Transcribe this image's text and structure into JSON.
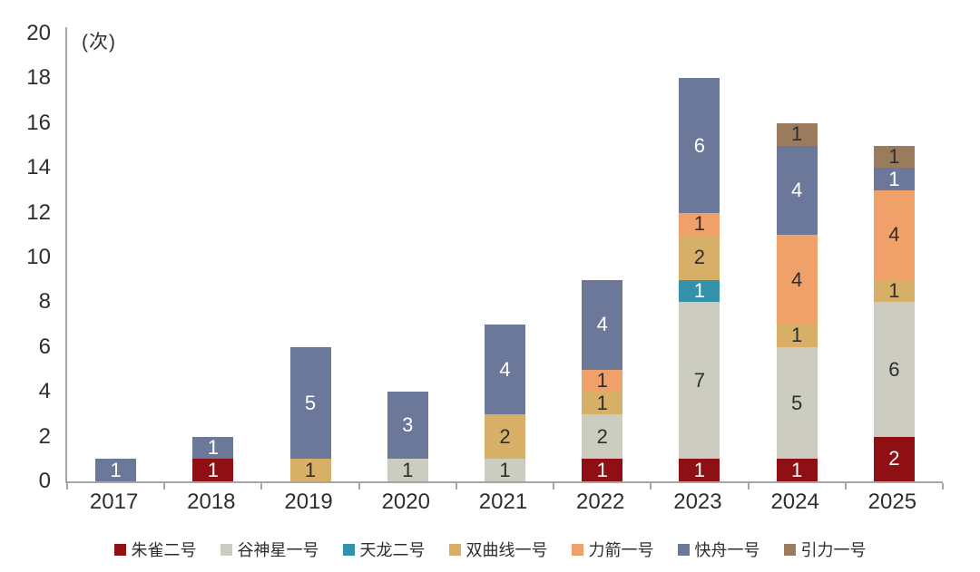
{
  "chart_data": {
    "type": "bar",
    "stacked": true,
    "title": "",
    "unit_label": "(次)",
    "categories": [
      "2017",
      "2018",
      "2019",
      "2020",
      "2021",
      "2022",
      "2023",
      "2024",
      "2025"
    ],
    "series": [
      {
        "name": "朱雀二号",
        "color": "#8e1014",
        "label_color": "#ffffff",
        "values": [
          0,
          1,
          0,
          0,
          0,
          1,
          1,
          1,
          2
        ]
      },
      {
        "name": "谷神星一号",
        "color": "#cdccc0",
        "label_color": "#2e2e2e",
        "values": [
          0,
          0,
          0,
          1,
          1,
          2,
          7,
          5,
          6
        ]
      },
      {
        "name": "天龙二号",
        "color": "#3391a9",
        "label_color": "#ffffff",
        "values": [
          0,
          0,
          0,
          0,
          0,
          0,
          1,
          0,
          0
        ]
      },
      {
        "name": "双曲线一号",
        "color": "#d8af66",
        "label_color": "#2e2e2e",
        "values": [
          0,
          0,
          1,
          0,
          2,
          1,
          2,
          1,
          1
        ]
      },
      {
        "name": "力箭一号",
        "color": "#f0a169",
        "label_color": "#2e2e2e",
        "values": [
          0,
          0,
          0,
          0,
          0,
          1,
          1,
          4,
          4
        ]
      },
      {
        "name": "快舟一号",
        "color": "#6b7899",
        "label_color": "#ffffff",
        "values": [
          1,
          1,
          5,
          3,
          4,
          4,
          6,
          4,
          1
        ]
      },
      {
        "name": "引力一号",
        "color": "#9a7b5e",
        "label_color": "#2e2e2e",
        "values": [
          0,
          0,
          0,
          0,
          0,
          0,
          0,
          1,
          1
        ]
      }
    ],
    "totals": [
      1,
      2,
      6,
      4,
      7,
      9,
      18,
      16,
      15
    ],
    "ylim": [
      0,
      20
    ],
    "yticks": [
      0,
      2,
      4,
      6,
      8,
      10,
      12,
      14,
      16,
      18,
      20
    ],
    "grid": false,
    "legend_position": "bottom",
    "axis_color": "#a6a6a6",
    "text_color": "#2e2e2e",
    "background_color": "#ffffff"
  }
}
